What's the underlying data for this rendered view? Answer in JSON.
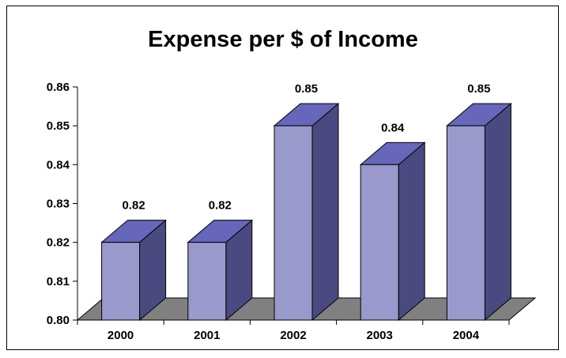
{
  "chart_data": {
    "type": "bar",
    "title": "Expense per $ of Income",
    "categories": [
      "2000",
      "2001",
      "2002",
      "2003",
      "2004"
    ],
    "values": [
      0.82,
      0.82,
      0.85,
      0.84,
      0.85
    ],
    "data_labels": [
      "0.82",
      "0.82",
      "0.85",
      "0.84",
      "0.85"
    ],
    "y_ticks": [
      "0.80",
      "0.81",
      "0.82",
      "0.83",
      "0.84",
      "0.85",
      "0.86"
    ],
    "ylim": [
      0.8,
      0.86
    ],
    "xlabel": "",
    "ylabel": "",
    "grid": false,
    "legend": "none",
    "style": "3d-column"
  },
  "colors": {
    "bar_front": "#9999cc",
    "bar_top": "#6666bb",
    "bar_side": "#4a4a80",
    "floor": "#808080",
    "outline": "#000000"
  }
}
